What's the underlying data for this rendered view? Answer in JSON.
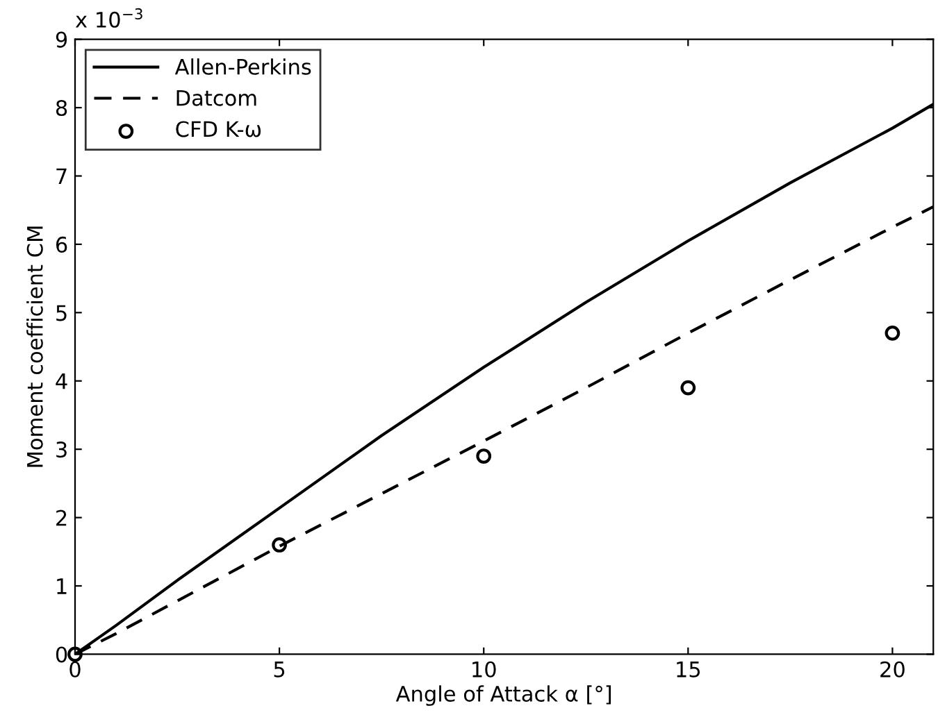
{
  "chart_data": {
    "type": "line",
    "xlabel": "Angle of Attack α [°]",
    "ylabel": "Moment coefficient CM",
    "annotations": [
      "x 10$^{−3}$"
    ],
    "series": [
      {
        "name": "Allen-Perkins",
        "color": "#000000",
        "line_style": "solid",
        "marker": "none",
        "x": [
          0,
          1,
          2.5,
          5,
          7.5,
          10,
          12.5,
          15,
          17.5,
          20,
          21
        ],
        "values": [
          0,
          0.42,
          1.08,
          2.14,
          3.2,
          4.2,
          5.15,
          6.05,
          6.9,
          7.7,
          8.05
        ]
      },
      {
        "name": "Datcom",
        "color": "#000000",
        "line_style": "dashed",
        "marker": "none",
        "x": [
          0,
          1,
          2.5,
          5,
          7.5,
          10,
          12.5,
          15,
          17.5,
          20,
          21
        ],
        "values": [
          0,
          0.3,
          0.78,
          1.58,
          2.35,
          3.12,
          3.9,
          4.7,
          5.48,
          6.25,
          6.55
        ]
      },
      {
        "name": "CFD K-ω",
        "type": "scatter",
        "color": "#000000",
        "marker": "circle",
        "x": [
          0,
          5,
          10,
          15,
          20
        ],
        "values": [
          0,
          1.6,
          2.9,
          3.9,
          4.7
        ]
      }
    ],
    "xlim": [
      0,
      21
    ],
    "xticks": [
      0,
      5,
      10,
      15,
      20
    ],
    "ylim": [
      0,
      9
    ],
    "yticks": [
      0,
      1,
      2,
      3,
      4,
      5,
      6,
      7,
      8,
      9
    ],
    "grid": false,
    "legend": "top left"
  }
}
